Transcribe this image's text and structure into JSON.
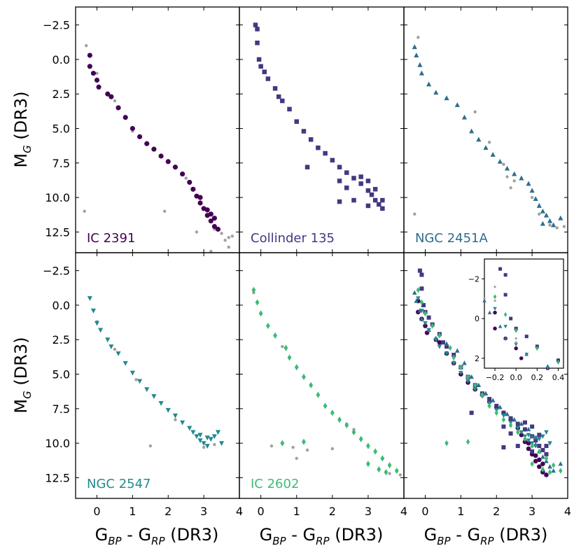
{
  "figure": {
    "x_axis_title": "G",
    "x_axis_sub1": "BP",
    "x_axis_mid": " - G",
    "x_axis_sub2": "RP",
    "x_axis_suffix": " (DR3)",
    "y_axis_title": "M",
    "y_axis_sub": "G",
    "y_axis_suffix": " (DR3)"
  },
  "chart_data": [
    {
      "type": "scatter",
      "title": "IC 2391",
      "color": "#440154",
      "marker": "circle",
      "xlim": [
        -0.6,
        4.0
      ],
      "ylim": [
        14.0,
        -3.8
      ],
      "xticks": [
        "0",
        "1",
        "2",
        "3",
        "4"
      ],
      "yticks": [
        "−2.5",
        "0.0",
        "2.5",
        "5.0",
        "7.5",
        "10.0",
        "12.5"
      ],
      "members": [
        [
          -0.2,
          -0.3
        ],
        [
          -0.2,
          0.5
        ],
        [
          -0.1,
          1.0
        ],
        [
          0.0,
          1.5
        ],
        [
          0.05,
          2.0
        ],
        [
          0.3,
          2.5
        ],
        [
          0.4,
          2.7
        ],
        [
          0.6,
          3.5
        ],
        [
          0.8,
          4.2
        ],
        [
          1.0,
          5.0
        ],
        [
          1.2,
          5.6
        ],
        [
          1.4,
          6.1
        ],
        [
          1.6,
          6.5
        ],
        [
          1.8,
          7.0
        ],
        [
          2.0,
          7.4
        ],
        [
          2.2,
          7.8
        ],
        [
          2.4,
          8.3
        ],
        [
          2.6,
          8.9
        ],
        [
          2.7,
          9.4
        ],
        [
          2.8,
          9.9
        ],
        [
          2.9,
          10.4
        ],
        [
          3.0,
          10.8
        ],
        [
          3.1,
          11.3
        ],
        [
          3.2,
          11.7
        ],
        [
          3.3,
          12.1
        ],
        [
          3.4,
          12.3
        ],
        [
          2.9,
          10.0
        ],
        [
          3.1,
          10.9
        ],
        [
          3.2,
          11.2
        ],
        [
          3.3,
          11.5
        ]
      ],
      "field": [
        [
          -0.3,
          -1.0
        ],
        [
          0.0,
          1.0
        ],
        [
          0.5,
          3.0
        ],
        [
          1.0,
          5.2
        ],
        [
          2.5,
          8.6
        ],
        [
          3.3,
          12.3
        ],
        [
          3.5,
          12.6
        ],
        [
          3.7,
          12.9
        ],
        [
          -0.35,
          11.0
        ],
        [
          1.9,
          11.0
        ],
        [
          2.8,
          12.5
        ],
        [
          3.6,
          13.1
        ],
        [
          3.7,
          13.6
        ],
        [
          3.8,
          12.8
        ],
        [
          3.2,
          13.9
        ]
      ]
    },
    {
      "type": "scatter",
      "title": "Collinder 135",
      "color": "#453781",
      "marker": "square",
      "xlim": [
        -0.6,
        4.0
      ],
      "ylim": [
        14.0,
        -3.8
      ],
      "xticks": [
        "0",
        "1",
        "2",
        "3",
        "4"
      ],
      "yticks": [],
      "members": [
        [
          -0.15,
          -2.5
        ],
        [
          -0.1,
          -2.2
        ],
        [
          -0.1,
          -1.2
        ],
        [
          -0.05,
          0.0
        ],
        [
          0.0,
          0.5
        ],
        [
          0.1,
          0.9
        ],
        [
          0.2,
          1.4
        ],
        [
          0.4,
          2.1
        ],
        [
          0.5,
          2.7
        ],
        [
          0.6,
          3.0
        ],
        [
          0.8,
          3.6
        ],
        [
          1.0,
          4.5
        ],
        [
          1.2,
          5.2
        ],
        [
          1.4,
          5.8
        ],
        [
          1.6,
          6.4
        ],
        [
          1.8,
          6.8
        ],
        [
          2.0,
          7.3
        ],
        [
          2.2,
          7.8
        ],
        [
          2.4,
          8.2
        ],
        [
          2.6,
          8.6
        ],
        [
          2.8,
          9.0
        ],
        [
          3.0,
          9.5
        ],
        [
          3.1,
          9.8
        ],
        [
          3.2,
          10.2
        ],
        [
          3.3,
          10.5
        ],
        [
          3.4,
          10.8
        ],
        [
          1.3,
          7.8
        ],
        [
          2.2,
          8.8
        ],
        [
          2.4,
          9.3
        ],
        [
          2.6,
          10.2
        ],
        [
          2.2,
          10.3
        ],
        [
          3.0,
          10.6
        ],
        [
          3.4,
          10.2
        ],
        [
          3.2,
          9.4
        ],
        [
          3.0,
          8.8
        ],
        [
          2.8,
          8.5
        ]
      ],
      "field": []
    },
    {
      "type": "scatter",
      "title": "NGC 2451A",
      "color": "#2d6d8e",
      "marker": "triangle-up",
      "xlim": [
        -0.6,
        4.0
      ],
      "ylim": [
        14.0,
        -3.8
      ],
      "xticks": [
        "0",
        "1",
        "2",
        "3",
        "4"
      ],
      "yticks": [],
      "members": [
        [
          -0.3,
          -0.9
        ],
        [
          -0.25,
          -0.3
        ],
        [
          -0.15,
          0.4
        ],
        [
          -0.1,
          1.0
        ],
        [
          0.1,
          1.8
        ],
        [
          0.3,
          2.4
        ],
        [
          0.6,
          2.8
        ],
        [
          0.9,
          3.3
        ],
        [
          1.1,
          4.2
        ],
        [
          1.3,
          5.2
        ],
        [
          1.5,
          5.8
        ],
        [
          1.7,
          6.4
        ],
        [
          1.9,
          6.9
        ],
        [
          2.1,
          7.4
        ],
        [
          2.3,
          7.9
        ],
        [
          2.5,
          8.3
        ],
        [
          2.7,
          8.6
        ],
        [
          2.9,
          9.0
        ],
        [
          3.0,
          9.5
        ],
        [
          3.1,
          10.1
        ],
        [
          3.2,
          10.6
        ],
        [
          3.3,
          11.0
        ],
        [
          3.4,
          11.3
        ],
        [
          3.5,
          11.7
        ],
        [
          3.6,
          12.0
        ],
        [
          3.3,
          11.9
        ],
        [
          3.8,
          11.5
        ]
      ],
      "field": [
        [
          -0.2,
          -1.6
        ],
        [
          1.4,
          3.8
        ],
        [
          1.8,
          6.0
        ],
        [
          2.2,
          7.6
        ],
        [
          2.3,
          8.5
        ],
        [
          2.5,
          8.8
        ],
        [
          3.0,
          10.0
        ],
        [
          3.2,
          11.2
        ],
        [
          3.5,
          12.0
        ],
        [
          3.7,
          12.2
        ],
        [
          3.9,
          12.1
        ],
        [
          -0.3,
          11.2
        ],
        [
          2.4,
          9.3
        ]
      ]
    },
    {
      "type": "scatter",
      "title": "NGC 2547",
      "color": "#238a8d",
      "marker": "triangle-down",
      "xlim": [
        -0.6,
        4.0
      ],
      "ylim": [
        14.0,
        -3.8
      ],
      "xticks": [
        "0",
        "1",
        "2",
        "3",
        "4"
      ],
      "yticks": [
        "−2.5",
        "0.0",
        "2.5",
        "5.0",
        "7.5",
        "10.0",
        "12.5"
      ],
      "members": [
        [
          -0.2,
          -0.5
        ],
        [
          -0.1,
          0.4
        ],
        [
          0.0,
          1.3
        ],
        [
          0.1,
          1.8
        ],
        [
          0.3,
          2.5
        ],
        [
          0.4,
          3.0
        ],
        [
          0.6,
          3.5
        ],
        [
          0.8,
          4.2
        ],
        [
          1.0,
          4.9
        ],
        [
          1.2,
          5.5
        ],
        [
          1.4,
          6.1
        ],
        [
          1.6,
          6.6
        ],
        [
          1.8,
          7.1
        ],
        [
          2.0,
          7.6
        ],
        [
          2.2,
          8.0
        ],
        [
          2.4,
          8.5
        ],
        [
          2.6,
          8.9
        ],
        [
          2.7,
          9.2
        ],
        [
          2.8,
          9.5
        ],
        [
          2.9,
          9.8
        ],
        [
          3.0,
          10.0
        ],
        [
          3.1,
          10.2
        ],
        [
          3.2,
          9.7
        ],
        [
          3.3,
          9.5
        ],
        [
          3.4,
          9.2
        ],
        [
          3.5,
          10.0
        ],
        [
          2.9,
          9.4
        ],
        [
          3.1,
          9.6
        ]
      ],
      "field": [
        [
          0.0,
          1.2
        ],
        [
          0.5,
          3.2
        ],
        [
          1.1,
          5.4
        ],
        [
          2.2,
          8.3
        ],
        [
          3.0,
          10.3
        ],
        [
          3.3,
          10.1
        ],
        [
          1.5,
          10.2
        ]
      ]
    },
    {
      "type": "scatter",
      "title": "IC 2602",
      "color": "#3cbb75",
      "marker": "diamond",
      "xlim": [
        -0.6,
        4.0
      ],
      "ylim": [
        14.0,
        -3.8
      ],
      "xticks": [
        "0",
        "1",
        "2",
        "3",
        "4"
      ],
      "yticks": [],
      "members": [
        [
          -0.2,
          -1.1
        ],
        [
          -0.1,
          -0.2
        ],
        [
          0.0,
          0.6
        ],
        [
          0.2,
          1.5
        ],
        [
          0.4,
          2.2
        ],
        [
          0.7,
          3.1
        ],
        [
          0.8,
          3.8
        ],
        [
          1.0,
          4.5
        ],
        [
          1.2,
          5.2
        ],
        [
          1.4,
          5.8
        ],
        [
          1.6,
          6.5
        ],
        [
          1.8,
          7.3
        ],
        [
          2.0,
          7.8
        ],
        [
          2.2,
          8.3
        ],
        [
          2.4,
          8.7
        ],
        [
          2.6,
          9.2
        ],
        [
          2.8,
          9.7
        ],
        [
          3.0,
          10.2
        ],
        [
          3.2,
          10.6
        ],
        [
          3.4,
          11.1
        ],
        [
          3.6,
          11.6
        ],
        [
          3.8,
          12.0
        ],
        [
          3.0,
          11.5
        ],
        [
          3.3,
          11.9
        ],
        [
          3.5,
          12.1
        ],
        [
          1.2,
          9.9
        ],
        [
          0.6,
          10.0
        ]
      ],
      "field": [
        [
          -0.2,
          -0.9
        ],
        [
          0.6,
          3.0
        ],
        [
          2.4,
          8.6
        ],
        [
          2.6,
          9.0
        ],
        [
          0.3,
          10.2
        ],
        [
          0.9,
          10.3
        ],
        [
          1.3,
          10.5
        ],
        [
          1.0,
          11.1
        ],
        [
          2.0,
          10.4
        ],
        [
          3.6,
          12.2
        ],
        [
          3.9,
          12.3
        ]
      ]
    },
    {
      "type": "scatter",
      "title": "",
      "color": "#000000",
      "marker": "mixed",
      "xlim": [
        -0.6,
        4.0
      ],
      "ylim": [
        14.0,
        -3.8
      ],
      "xticks": [
        "0",
        "1",
        "2",
        "3",
        "4"
      ],
      "yticks": [],
      "members": [],
      "field": [],
      "inset": {
        "xlim": [
          -0.3,
          0.45
        ],
        "ylim": [
          2.5,
          -3.0
        ],
        "xticks": [
          "−0.2",
          "0.0",
          "0.2",
          "0.4"
        ],
        "yticks": [
          "−2",
          "0",
          "2"
        ]
      }
    }
  ]
}
